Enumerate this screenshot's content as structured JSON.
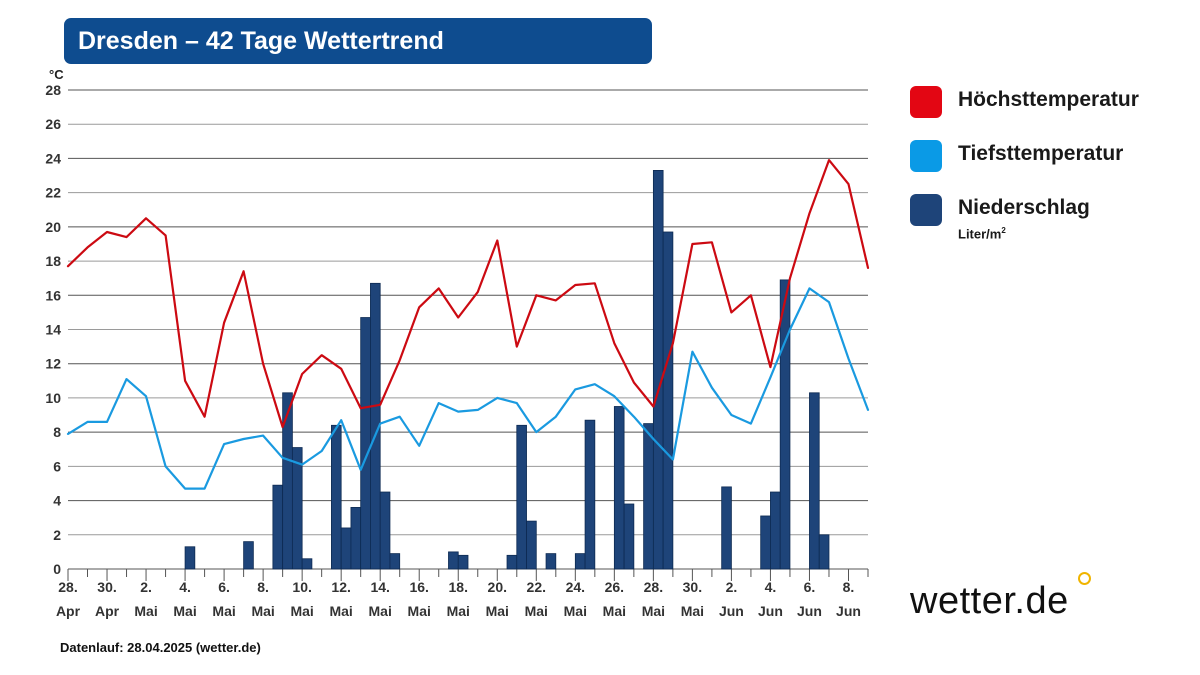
{
  "title": "Dresden – 42 Tage Wettertrend",
  "y_unit": "°C",
  "legend": [
    {
      "label": "Höchsttemperatur",
      "color": "#e30613"
    },
    {
      "label": "Tiefsttemperatur",
      "color": "#0a9ae6"
    },
    {
      "label": "Niederschlag",
      "color": "#1e4479",
      "unit": "Liter/m",
      "unit_sup": "2"
    }
  ],
  "footer": "Datenlauf: 28.04.2025 (wetter.de)",
  "brand": "wetter.de",
  "chart_data": {
    "type": "line",
    "ylim": [
      0,
      28
    ],
    "yticks": [
      0,
      2,
      4,
      6,
      8,
      10,
      12,
      14,
      16,
      18,
      20,
      22,
      24,
      26,
      28
    ],
    "grid": true,
    "legend_position": "right",
    "x_day_count": 42,
    "x_tick_labels": [
      {
        "day": "28.",
        "month": "Apr"
      },
      {
        "day": "30.",
        "month": "Apr"
      },
      {
        "day": "2.",
        "month": "Mai"
      },
      {
        "day": "4.",
        "month": "Mai"
      },
      {
        "day": "6.",
        "month": "Mai"
      },
      {
        "day": "8.",
        "month": "Mai"
      },
      {
        "day": "10.",
        "month": "Mai"
      },
      {
        "day": "12.",
        "month": "Mai"
      },
      {
        "day": "14.",
        "month": "Mai"
      },
      {
        "day": "16.",
        "month": "Mai"
      },
      {
        "day": "18.",
        "month": "Mai"
      },
      {
        "day": "20.",
        "month": "Mai"
      },
      {
        "day": "22.",
        "month": "Mai"
      },
      {
        "day": "24.",
        "month": "Mai"
      },
      {
        "day": "26.",
        "month": "Mai"
      },
      {
        "day": "28.",
        "month": "Mai"
      },
      {
        "day": "30.",
        "month": "Mai"
      },
      {
        "day": "2.",
        "month": "Jun"
      },
      {
        "day": "4.",
        "month": "Jun"
      },
      {
        "day": "6.",
        "month": "Jun"
      },
      {
        "day": "8.",
        "month": "Jun"
      }
    ],
    "series": [
      {
        "name": "Höchsttemperatur",
        "type": "line",
        "color": "#cc0a12",
        "values": [
          17.7,
          18.8,
          19.7,
          19.4,
          20.5,
          19.5,
          11.0,
          8.9,
          14.4,
          17.4,
          12.0,
          8.3,
          11.4,
          12.5,
          11.7,
          9.4,
          9.6,
          12.2,
          15.3,
          16.4,
          14.7,
          16.2,
          19.2,
          13.0,
          16.0,
          15.7,
          16.6,
          16.7,
          13.2,
          10.9,
          9.5,
          13.2,
          19.0,
          19.1,
          15.0,
          16.0,
          11.8,
          17.0,
          20.8,
          23.9,
          22.5,
          17.6
        ]
      },
      {
        "name": "Tiefsttemperatur",
        "type": "line",
        "color": "#1a9ae0",
        "values": [
          7.9,
          8.6,
          8.6,
          11.1,
          10.1,
          6.0,
          4.7,
          4.7,
          7.3,
          7.6,
          7.8,
          6.5,
          6.1,
          6.9,
          8.7,
          5.8,
          8.5,
          8.9,
          7.2,
          9.7,
          9.2,
          9.3,
          10.0,
          9.7,
          8.0,
          8.9,
          10.5,
          10.8,
          10.1,
          8.9,
          7.6,
          6.4,
          12.7,
          10.6,
          9.0,
          8.5,
          11.2,
          14.0,
          16.4,
          15.6,
          12.3,
          9.3
        ]
      },
      {
        "name": "Niederschlag",
        "type": "bar",
        "color": "#1e4479",
        "bars": [
          {
            "x": 6.25,
            "v": 1.3
          },
          {
            "x": 9.25,
            "v": 1.6
          },
          {
            "x": 10.75,
            "v": 4.9
          },
          {
            "x": 11.25,
            "v": 10.3
          },
          {
            "x": 11.75,
            "v": 7.1
          },
          {
            "x": 12.25,
            "v": 0.6
          },
          {
            "x": 13.75,
            "v": 8.4
          },
          {
            "x": 14.25,
            "v": 2.4
          },
          {
            "x": 14.75,
            "v": 3.6
          },
          {
            "x": 15.25,
            "v": 14.7
          },
          {
            "x": 15.75,
            "v": 16.7
          },
          {
            "x": 16.25,
            "v": 4.5
          },
          {
            "x": 16.75,
            "v": 0.9
          },
          {
            "x": 19.75,
            "v": 1.0
          },
          {
            "x": 20.25,
            "v": 0.8
          },
          {
            "x": 22.75,
            "v": 0.8
          },
          {
            "x": 23.25,
            "v": 8.4
          },
          {
            "x": 23.75,
            "v": 2.8
          },
          {
            "x": 24.75,
            "v": 0.9
          },
          {
            "x": 26.25,
            "v": 0.9
          },
          {
            "x": 26.75,
            "v": 8.7
          },
          {
            "x": 28.25,
            "v": 9.5
          },
          {
            "x": 28.75,
            "v": 3.8
          },
          {
            "x": 29.75,
            "v": 8.5
          },
          {
            "x": 30.25,
            "v": 23.3
          },
          {
            "x": 30.75,
            "v": 19.7
          },
          {
            "x": 33.75,
            "v": 4.8
          },
          {
            "x": 35.75,
            "v": 3.1
          },
          {
            "x": 36.25,
            "v": 4.5
          },
          {
            "x": 36.75,
            "v": 16.9
          },
          {
            "x": 38.25,
            "v": 10.3
          },
          {
            "x": 38.75,
            "v": 2.0
          }
        ]
      }
    ]
  }
}
